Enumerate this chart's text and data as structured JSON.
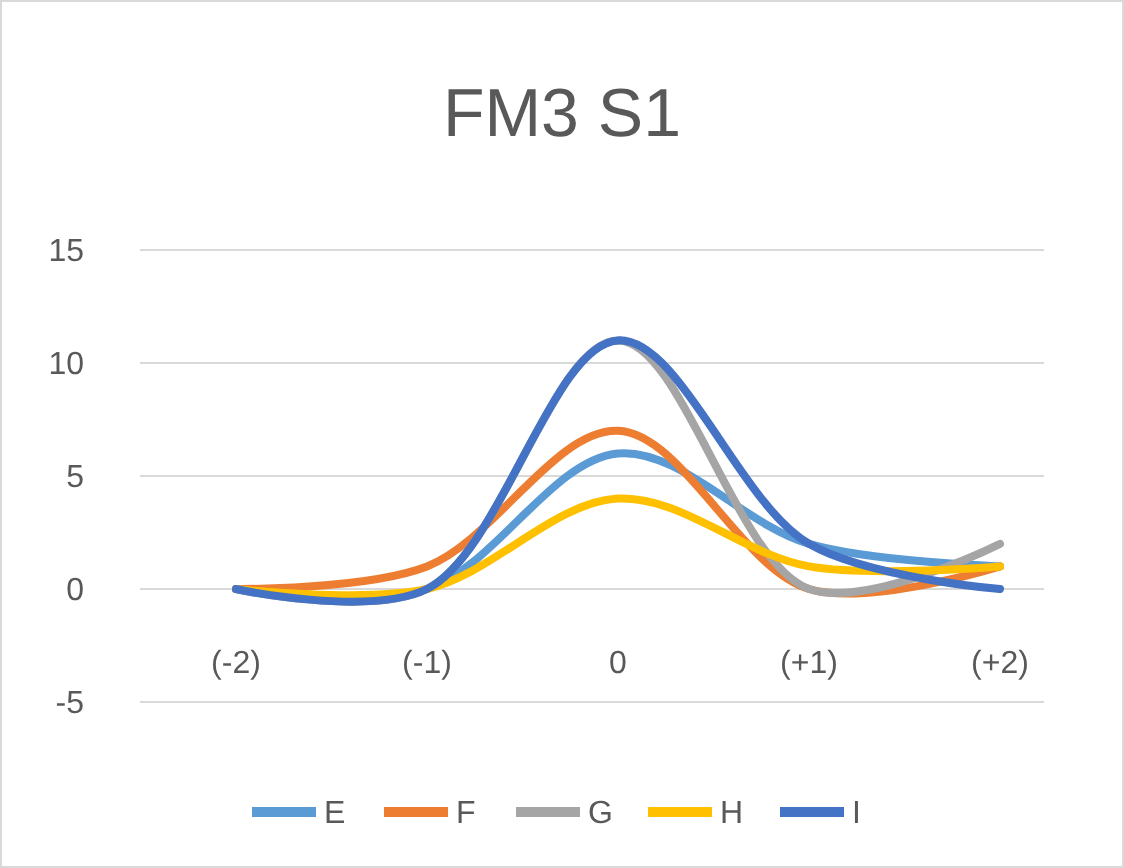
{
  "chart_data": {
    "type": "line",
    "title": "FM3 S1",
    "categories": [
      "(-2)",
      "(-1)",
      "0",
      "(+1)",
      "(+2)"
    ],
    "series": [
      {
        "name": "E",
        "color": "#5b9bd5",
        "values": [
          0,
          0,
          6,
          2,
          1
        ]
      },
      {
        "name": "F",
        "color": "#ed7d31",
        "values": [
          0,
          1,
          7,
          0,
          1
        ]
      },
      {
        "name": "G",
        "color": "#a5a5a5",
        "values": [
          0,
          0,
          11,
          0,
          2
        ]
      },
      {
        "name": "H",
        "color": "#ffc000",
        "values": [
          0,
          0,
          4,
          1,
          1
        ]
      },
      {
        "name": "I",
        "color": "#4472c4",
        "values": [
          0,
          0,
          11,
          2,
          0
        ]
      }
    ],
    "ylim": [
      -5,
      15
    ],
    "yticks": [
      -5,
      0,
      5,
      10,
      15
    ],
    "grid": "y",
    "legend": "bottom",
    "marker": "none",
    "line_style": "solid"
  }
}
